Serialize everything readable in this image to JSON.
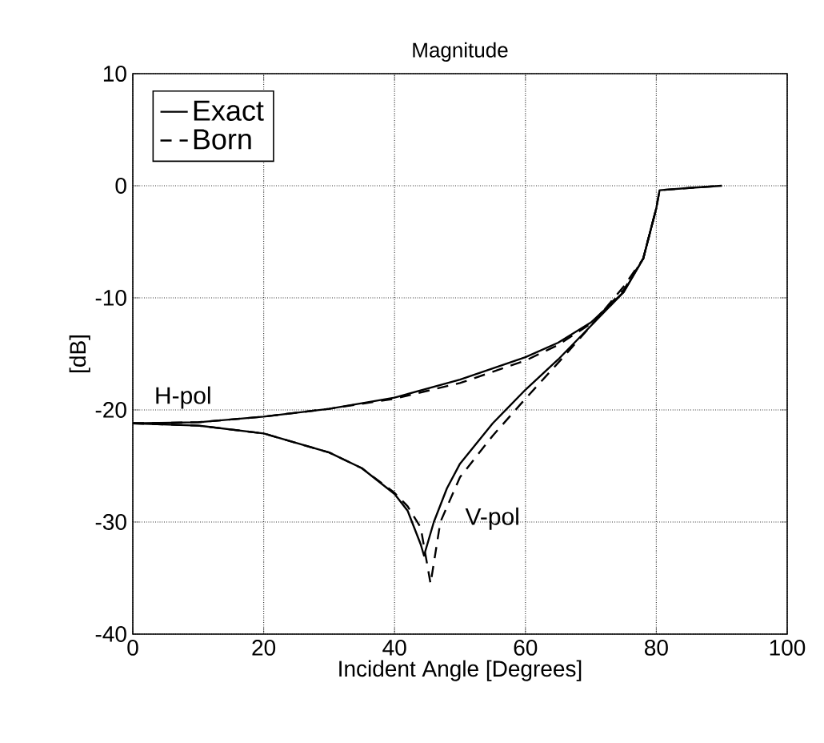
{
  "chart_data": {
    "type": "line",
    "title": "Magnitude",
    "xlabel": "Incident Angle [Degrees]",
    "ylabel": "[dB]",
    "xlim": [
      0,
      100
    ],
    "xticks": [
      0,
      20,
      40,
      60,
      80,
      100
    ],
    "ylim": [
      -40,
      10
    ],
    "yticks": [
      -40,
      -30,
      -20,
      -10,
      0,
      10
    ],
    "grid": true,
    "legend": "top left",
    "series": [
      {
        "name": "Exact",
        "color": "#000000",
        "line_style": "solid",
        "x": [
          0,
          10,
          20,
          30,
          40,
          50,
          60,
          65,
          70,
          75,
          78,
          80,
          80.5,
          85,
          90
        ],
        "values": [
          -21.2,
          -21.1,
          -20.6,
          -19.9,
          -18.9,
          -17.3,
          -15.3,
          -14,
          -12.2,
          -9.5,
          -6.5,
          -2,
          -0.4,
          -0.2,
          0
        ]
      },
      {
        "name": "Born",
        "color": "#000000",
        "line_style": "dashed",
        "x": [
          0,
          10,
          20,
          30,
          40,
          50,
          55,
          60,
          65,
          70,
          75,
          78,
          80,
          80.5,
          85,
          90
        ],
        "values": [
          -21.2,
          -21.1,
          -20.6,
          -19.9,
          -19,
          -17.6,
          -16.6,
          -15.6,
          -14.2,
          -12.3,
          -9.3,
          -6.5,
          -2,
          -0.4,
          -0.2,
          0
        ]
      },
      {
        "color": "#000000",
        "line_style": "solid",
        "x": [
          0,
          10,
          20,
          30,
          35,
          40,
          42,
          44,
          44.5,
          46,
          48,
          50,
          55,
          60,
          65,
          70,
          75,
          78,
          80
        ],
        "values": [
          -21.2,
          -21.4,
          -22.1,
          -23.8,
          -25.2,
          -27.5,
          -29,
          -32,
          -33,
          -30,
          -27,
          -24.8,
          -21.2,
          -18.2,
          -15.5,
          -12.5,
          -9.5,
          -6.5,
          -2
        ]
      },
      {
        "color": "#000000",
        "line_style": "dashed",
        "x": [
          0,
          10,
          20,
          30,
          35,
          40,
          42,
          44,
          45.5,
          47,
          50,
          55,
          60,
          65,
          70,
          75,
          78,
          80
        ],
        "values": [
          -21.2,
          -21.4,
          -22.1,
          -23.8,
          -25.2,
          -27.4,
          -28.6,
          -30.5,
          -35.5,
          -30,
          -26,
          -22.3,
          -19,
          -15.8,
          -12.5,
          -9,
          -6.5,
          -2
        ]
      }
    ],
    "annotations": [
      "H-pol",
      "V-pol"
    ]
  }
}
